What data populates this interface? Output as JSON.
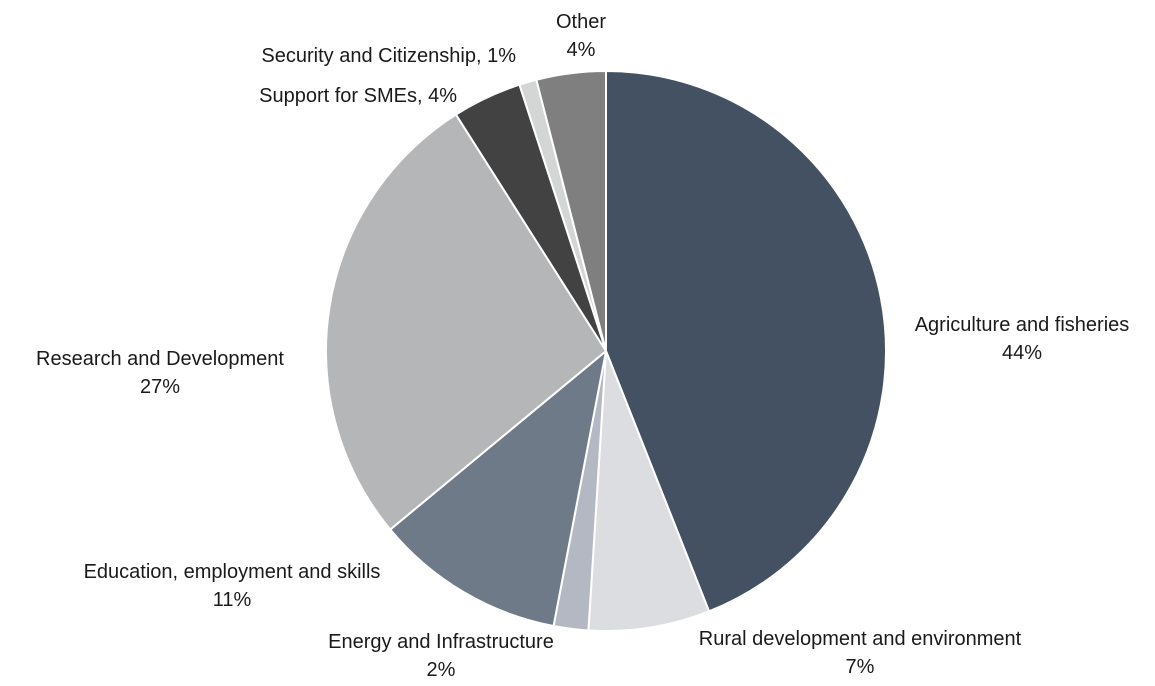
{
  "chart_data": {
    "type": "pie",
    "title": "",
    "start": "top",
    "direction": "clockwise",
    "slices": [
      {
        "label": "Agriculture and fisheries",
        "value": 44,
        "value_label": "44%",
        "label_style": "stacked",
        "color": "#435163"
      },
      {
        "label": "Rural development and environment",
        "value": 7,
        "value_label": "7%",
        "label_style": "stacked",
        "color": "#dcdde0"
      },
      {
        "label": "Energy and Infrastructure",
        "value": 2,
        "value_label": "2%",
        "label_style": "stacked",
        "color": "#b3b8c2"
      },
      {
        "label": "Education, employment and skills",
        "value": 11,
        "value_label": "11%",
        "label_style": "stacked",
        "color": "#6f7a88"
      },
      {
        "label": "Research and Development",
        "value": 27,
        "value_label": "27%",
        "label_style": "stacked",
        "color": "#b5b6b8"
      },
      {
        "label": "Support for SMEs",
        "value": 4,
        "value_label": "4%",
        "label_style": "inline",
        "color": "#424242"
      },
      {
        "label": "Security and Citizenship",
        "value": 1,
        "value_label": "1%",
        "label_style": "inline",
        "color": "#d4d6d5"
      },
      {
        "label": "Other",
        "value": 4,
        "value_label": "4%",
        "label_style": "stacked",
        "color": "#7f7f7f"
      }
    ]
  }
}
